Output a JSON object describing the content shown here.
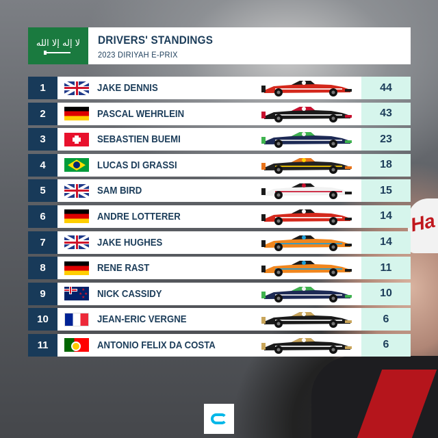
{
  "header": {
    "title": "DRIVERS' STANDINGS",
    "subtitle": "2023 DIRIYAH E-PRIX",
    "flag_icon": "saudi-arabia-flag-icon"
  },
  "colors": {
    "position_bg": "#183a59",
    "points_bg": "#d6f5ec",
    "text": "#1c3d5a"
  },
  "standings": [
    {
      "pos": "1",
      "name": "JAKE DENNIS",
      "flag": "gb",
      "car": {
        "body": "#d4281c",
        "accent": "#1a1a1a",
        "stripe": "#ffffff"
      },
      "points": "44"
    },
    {
      "pos": "2",
      "name": "PASCAL WEHRLEIN",
      "flag": "de",
      "car": {
        "body": "#1a1a1a",
        "accent": "#c8102e",
        "stripe": "#ffffff"
      },
      "points": "43"
    },
    {
      "pos": "3",
      "name": "SEBASTIEN BUEMI",
      "flag": "ch",
      "car": {
        "body": "#1d2a55",
        "accent": "#3fb34f",
        "stripe": "#f2f2f2"
      },
      "points": "23"
    },
    {
      "pos": "4",
      "name": "LUCAS DI GRASSI",
      "flag": "br",
      "car": {
        "body": "#222222",
        "accent": "#e8731a",
        "stripe": "#ffd100"
      },
      "points": "18"
    },
    {
      "pos": "5",
      "name": "SAM BIRD",
      "flag": "gb",
      "car": {
        "body": "#f2f2f2",
        "accent": "#1a1a1a",
        "stripe": "#c8102e"
      },
      "points": "15"
    },
    {
      "pos": "6",
      "name": "ANDRE LOTTERER",
      "flag": "de",
      "car": {
        "body": "#d4281c",
        "accent": "#1a1a1a",
        "stripe": "#ffffff"
      },
      "points": "14"
    },
    {
      "pos": "7",
      "name": "JAKE HUGHES",
      "flag": "gb",
      "car": {
        "body": "#f0861e",
        "accent": "#1a1a1a",
        "stripe": "#1e9fd8"
      },
      "points": "14"
    },
    {
      "pos": "8",
      "name": "RENE RAST",
      "flag": "de",
      "car": {
        "body": "#f0861e",
        "accent": "#1a1a1a",
        "stripe": "#1e9fd8"
      },
      "points": "11"
    },
    {
      "pos": "9",
      "name": "NICK CASSIDY",
      "flag": "nz",
      "car": {
        "body": "#1d2a55",
        "accent": "#3fb34f",
        "stripe": "#f2f2f2"
      },
      "points": "10"
    },
    {
      "pos": "10",
      "name": "JEAN-ERIC VERGNE",
      "flag": "fr",
      "car": {
        "body": "#1a1a1a",
        "accent": "#c9a55a",
        "stripe": "#ffffff"
      },
      "points": "6"
    },
    {
      "pos": "11",
      "name": "ANTONIO FELIX DA COSTA",
      "flag": "pt",
      "car": {
        "body": "#1a1a1a",
        "accent": "#c9a55a",
        "stripe": "#ffffff"
      },
      "points": "6"
    }
  ],
  "footer": {
    "logo_icon": "formula-e-logo-icon"
  }
}
